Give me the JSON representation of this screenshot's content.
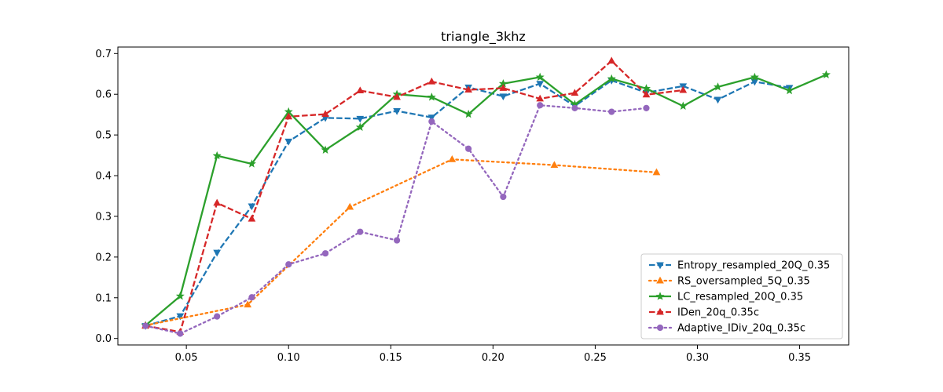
{
  "chart_data": {
    "type": "line",
    "title": "triangle_3khz",
    "xlabel": "",
    "ylabel": "",
    "xlim": [
      0.0165,
      0.374
    ],
    "ylim": [
      -0.016,
      0.716
    ],
    "xticks": [
      0.05,
      0.1,
      0.15,
      0.2,
      0.25,
      0.3,
      0.35
    ],
    "xtick_labels": [
      "0.05",
      "0.10",
      "0.15",
      "0.20",
      "0.25",
      "0.30",
      "0.35"
    ],
    "yticks": [
      0.0,
      0.1,
      0.2,
      0.3,
      0.4,
      0.5,
      0.6,
      0.7
    ],
    "ytick_labels": [
      "0.0",
      "0.1",
      "0.2",
      "0.3",
      "0.4",
      "0.5",
      "0.6",
      "0.7"
    ],
    "grid": false,
    "legend_position": "lower-right",
    "series": [
      {
        "name": "Entropy_resampled_20Q_0.35",
        "color": "#1f77b4",
        "dash": "dashed",
        "marker": "triangle-down",
        "x": [
          0.03,
          0.047,
          0.065,
          0.082,
          0.1,
          0.118,
          0.135,
          0.153,
          0.17,
          0.188,
          0.205,
          0.223,
          0.24,
          0.258,
          0.275,
          0.293,
          0.31,
          0.328,
          0.345
        ],
        "y": [
          0.031,
          0.055,
          0.211,
          0.325,
          0.484,
          0.542,
          0.54,
          0.559,
          0.543,
          0.617,
          0.595,
          0.626,
          0.571,
          0.634,
          0.604,
          0.62,
          0.587,
          0.631,
          0.616
        ]
      },
      {
        "name": "RS_oversampled_5Q_0.35",
        "color": "#ff7f0e",
        "dash": "dotted",
        "marker": "triangle-up",
        "x": [
          0.03,
          0.08,
          0.13,
          0.18,
          0.23,
          0.28
        ],
        "y": [
          0.032,
          0.083,
          0.323,
          0.44,
          0.426,
          0.408
        ]
      },
      {
        "name": "LC_resampled_20Q_0.35",
        "color": "#2ca02c",
        "dash": "solid",
        "marker": "star",
        "x": [
          0.03,
          0.047,
          0.065,
          0.082,
          0.1,
          0.118,
          0.135,
          0.153,
          0.17,
          0.188,
          0.205,
          0.223,
          0.24,
          0.258,
          0.275,
          0.293,
          0.31,
          0.328,
          0.345,
          0.363
        ],
        "y": [
          0.032,
          0.104,
          0.449,
          0.429,
          0.557,
          0.463,
          0.519,
          0.6,
          0.593,
          0.551,
          0.626,
          0.642,
          0.575,
          0.638,
          0.614,
          0.571,
          0.618,
          0.642,
          0.609,
          0.648
        ]
      },
      {
        "name": "IDen_20q_0.35c",
        "color": "#d62728",
        "dash": "dashed",
        "marker": "triangle-up",
        "x": [
          0.03,
          0.047,
          0.065,
          0.082,
          0.1,
          0.118,
          0.135,
          0.153,
          0.17,
          0.188,
          0.205,
          0.223,
          0.24,
          0.258,
          0.275,
          0.293
        ],
        "y": [
          0.031,
          0.016,
          0.333,
          0.294,
          0.545,
          0.551,
          0.609,
          0.593,
          0.631,
          0.611,
          0.615,
          0.589,
          0.603,
          0.682,
          0.599,
          0.61
        ]
      },
      {
        "name": "Adaptive_IDiv_20q_0.35c",
        "color": "#9467bd",
        "dash": "dotted",
        "marker": "circle",
        "x": [
          0.03,
          0.047,
          0.065,
          0.082,
          0.1,
          0.118,
          0.135,
          0.153,
          0.17,
          0.188,
          0.205,
          0.223,
          0.24,
          0.258,
          0.275
        ],
        "y": [
          0.031,
          0.012,
          0.054,
          0.101,
          0.182,
          0.209,
          0.262,
          0.241,
          0.533,
          0.466,
          0.348,
          0.573,
          0.566,
          0.557,
          0.566
        ]
      }
    ]
  }
}
